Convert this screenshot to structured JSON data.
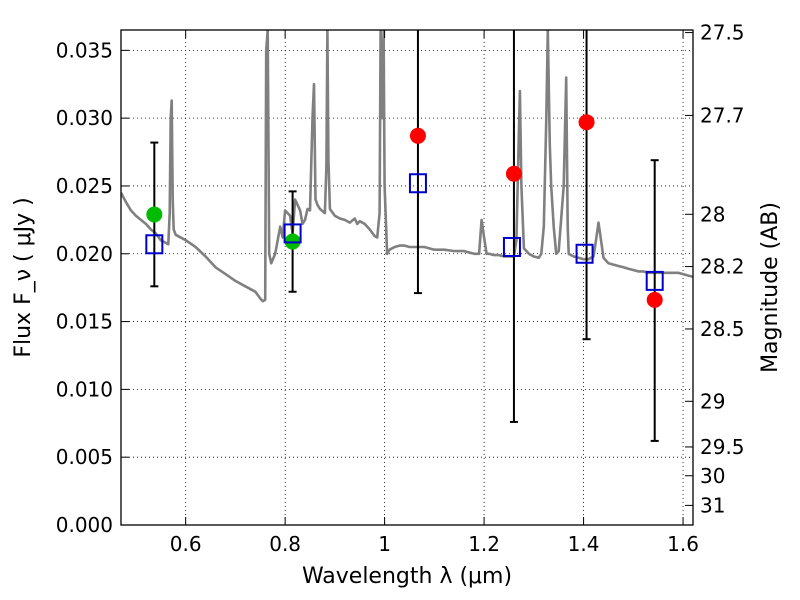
{
  "chart_data": {
    "type": "scatter",
    "title": "",
    "xlabel": "Wavelength  λ (μm)",
    "ylabel": "Flux  F_ν  ( μJy )",
    "y2label": "Magnitude (AB)",
    "xlim": [
      0.47,
      1.62
    ],
    "ylim": [
      0.0,
      0.0365
    ],
    "grid": true,
    "x_ticks": [
      0.6,
      0.8,
      1.0,
      1.2,
      1.4,
      1.6
    ],
    "x_tick_labels": [
      "0.6",
      "0.8",
      "1",
      "1.2",
      "1.4",
      "1.6"
    ],
    "y_ticks": [
      0.0,
      0.005,
      0.01,
      0.015,
      0.02,
      0.025,
      0.03,
      0.035
    ],
    "y_tick_labels": [
      "0.000",
      "0.005",
      "0.010",
      "0.015",
      "0.020",
      "0.025",
      "0.030",
      "0.035"
    ],
    "mag_ticks": [
      27.5,
      27.7,
      28,
      28.2,
      28.5,
      29,
      29.5,
      30,
      31
    ],
    "mag_tick_labels": [
      "27.5",
      "27.7",
      "28",
      "28.2",
      "28.5",
      "29",
      "29.5",
      "30",
      "31"
    ],
    "series": [
      {
        "name": "model spectrum",
        "kind": "line",
        "color": "#808080",
        "points": [
          [
            0.47,
            0.0245
          ],
          [
            0.48,
            0.0238
          ],
          [
            0.49,
            0.0232
          ],
          [
            0.5,
            0.0228
          ],
          [
            0.51,
            0.0225
          ],
          [
            0.52,
            0.0222
          ],
          [
            0.53,
            0.0218
          ],
          [
            0.54,
            0.0215
          ],
          [
            0.55,
            0.021
          ],
          [
            0.56,
            0.0208
          ],
          [
            0.565,
            0.0207
          ],
          [
            0.568,
            0.023
          ],
          [
            0.57,
            0.03
          ],
          [
            0.572,
            0.0313
          ],
          [
            0.574,
            0.024
          ],
          [
            0.576,
            0.0218
          ],
          [
            0.58,
            0.0214
          ],
          [
            0.6,
            0.021
          ],
          [
            0.62,
            0.0205
          ],
          [
            0.64,
            0.0198
          ],
          [
            0.66,
            0.019
          ],
          [
            0.68,
            0.0185
          ],
          [
            0.7,
            0.018
          ],
          [
            0.72,
            0.0176
          ],
          [
            0.74,
            0.0172
          ],
          [
            0.75,
            0.0167
          ],
          [
            0.755,
            0.0165
          ],
          [
            0.76,
            0.0166
          ],
          [
            0.762,
            0.035
          ],
          [
            0.765,
            0.0365
          ],
          [
            0.768,
            0.02
          ],
          [
            0.772,
            0.0193
          ],
          [
            0.78,
            0.02
          ],
          [
            0.79,
            0.022
          ],
          [
            0.795,
            0.0212
          ],
          [
            0.8,
            0.0232
          ],
          [
            0.81,
            0.0228
          ],
          [
            0.815,
            0.0215
          ],
          [
            0.82,
            0.024
          ],
          [
            0.825,
            0.0236
          ],
          [
            0.83,
            0.0232
          ],
          [
            0.835,
            0.0222
          ],
          [
            0.84,
            0.0225
          ],
          [
            0.845,
            0.0233
          ],
          [
            0.85,
            0.0232
          ],
          [
            0.855,
            0.03
          ],
          [
            0.858,
            0.0325
          ],
          [
            0.861,
            0.024
          ],
          [
            0.865,
            0.0236
          ],
          [
            0.87,
            0.0233
          ],
          [
            0.88,
            0.023
          ],
          [
            0.883,
            0.0265
          ],
          [
            0.885,
            0.0365
          ],
          [
            0.887,
            0.027
          ],
          [
            0.89,
            0.0233
          ],
          [
            0.9,
            0.0228
          ],
          [
            0.91,
            0.0226
          ],
          [
            0.92,
            0.0225
          ],
          [
            0.93,
            0.0223
          ],
          [
            0.94,
            0.0226
          ],
          [
            0.945,
            0.0222
          ],
          [
            0.95,
            0.0224
          ],
          [
            0.96,
            0.0222
          ],
          [
            0.97,
            0.0218
          ],
          [
            0.98,
            0.0213
          ],
          [
            0.985,
            0.0212
          ],
          [
            0.99,
            0.023
          ],
          [
            0.992,
            0.0365
          ],
          [
            0.996,
            0.03
          ],
          [
            0.998,
            0.0365
          ],
          [
            1.0,
            0.025
          ],
          [
            1.005,
            0.02
          ],
          [
            1.01,
            0.0203
          ],
          [
            1.02,
            0.0205
          ],
          [
            1.03,
            0.0206
          ],
          [
            1.04,
            0.0206
          ],
          [
            1.05,
            0.0205
          ],
          [
            1.06,
            0.0205
          ],
          [
            1.08,
            0.0205
          ],
          [
            1.1,
            0.0203
          ],
          [
            1.12,
            0.0203
          ],
          [
            1.14,
            0.0202
          ],
          [
            1.16,
            0.0202
          ],
          [
            1.18,
            0.02
          ],
          [
            1.19,
            0.02
          ],
          [
            1.195,
            0.0225
          ],
          [
            1.2,
            0.0212
          ],
          [
            1.205,
            0.02
          ],
          [
            1.21,
            0.02
          ],
          [
            1.22,
            0.0199
          ],
          [
            1.23,
            0.0199
          ],
          [
            1.24,
            0.0198
          ],
          [
            1.25,
            0.0198
          ],
          [
            1.26,
            0.0198
          ],
          [
            1.265,
            0.021
          ],
          [
            1.27,
            0.029
          ],
          [
            1.272,
            0.032
          ],
          [
            1.275,
            0.025
          ],
          [
            1.28,
            0.0204
          ],
          [
            1.29,
            0.02
          ],
          [
            1.3,
            0.0198
          ],
          [
            1.31,
            0.0197
          ],
          [
            1.315,
            0.02
          ],
          [
            1.32,
            0.022
          ],
          [
            1.325,
            0.03
          ],
          [
            1.328,
            0.0365
          ],
          [
            1.332,
            0.028
          ],
          [
            1.335,
            0.025
          ],
          [
            1.34,
            0.022
          ],
          [
            1.345,
            0.02
          ],
          [
            1.35,
            0.0202
          ],
          [
            1.36,
            0.025
          ],
          [
            1.365,
            0.033
          ],
          [
            1.368,
            0.022
          ],
          [
            1.37,
            0.02
          ],
          [
            1.38,
            0.0198
          ],
          [
            1.39,
            0.0197
          ],
          [
            1.4,
            0.0196
          ],
          [
            1.41,
            0.0196
          ],
          [
            1.42,
            0.0198
          ],
          [
            1.425,
            0.021
          ],
          [
            1.43,
            0.0223
          ],
          [
            1.435,
            0.021
          ],
          [
            1.44,
            0.0197
          ],
          [
            1.45,
            0.0193
          ],
          [
            1.46,
            0.0192
          ],
          [
            1.47,
            0.0191
          ],
          [
            1.48,
            0.019
          ],
          [
            1.49,
            0.0189
          ],
          [
            1.5,
            0.0188
          ],
          [
            1.51,
            0.0187
          ],
          [
            1.52,
            0.0187
          ],
          [
            1.53,
            0.0186
          ],
          [
            1.54,
            0.0186
          ],
          [
            1.55,
            0.0186
          ],
          [
            1.56,
            0.0186
          ],
          [
            1.57,
            0.0186
          ],
          [
            1.58,
            0.0186
          ],
          [
            1.59,
            0.0186
          ],
          [
            1.6,
            0.0185
          ],
          [
            1.61,
            0.0184
          ],
          [
            1.62,
            0.0183
          ]
        ]
      },
      {
        "name": "observed (green)",
        "kind": "circle",
        "color": "#00bb00",
        "x": [
          0.537,
          0.815
        ],
        "y": [
          0.0229,
          0.0209
        ]
      },
      {
        "name": "observed (red)",
        "kind": "circle",
        "color": "#ff0000",
        "x": [
          1.067,
          1.26,
          1.406,
          1.543
        ],
        "y": [
          0.0287,
          0.0259,
          0.0297,
          0.0166
        ]
      },
      {
        "name": "model photometry",
        "kind": "square",
        "color": "#0000cc",
        "x": [
          0.537,
          0.815,
          1.067,
          1.256,
          1.402,
          1.543
        ],
        "y": [
          0.0207,
          0.0215,
          0.0252,
          0.0205,
          0.02,
          0.018
        ]
      },
      {
        "name": "error bars",
        "kind": "errorbar",
        "color": "#000000",
        "x": [
          0.537,
          0.815,
          1.067,
          1.26,
          1.406,
          1.543
        ],
        "low": [
          0.0176,
          0.0172,
          0.0171,
          0.0076,
          0.0137,
          0.0062
        ],
        "high": [
          0.0282,
          0.0246,
          0.0365,
          0.0365,
          0.0365,
          0.0269
        ]
      }
    ]
  }
}
